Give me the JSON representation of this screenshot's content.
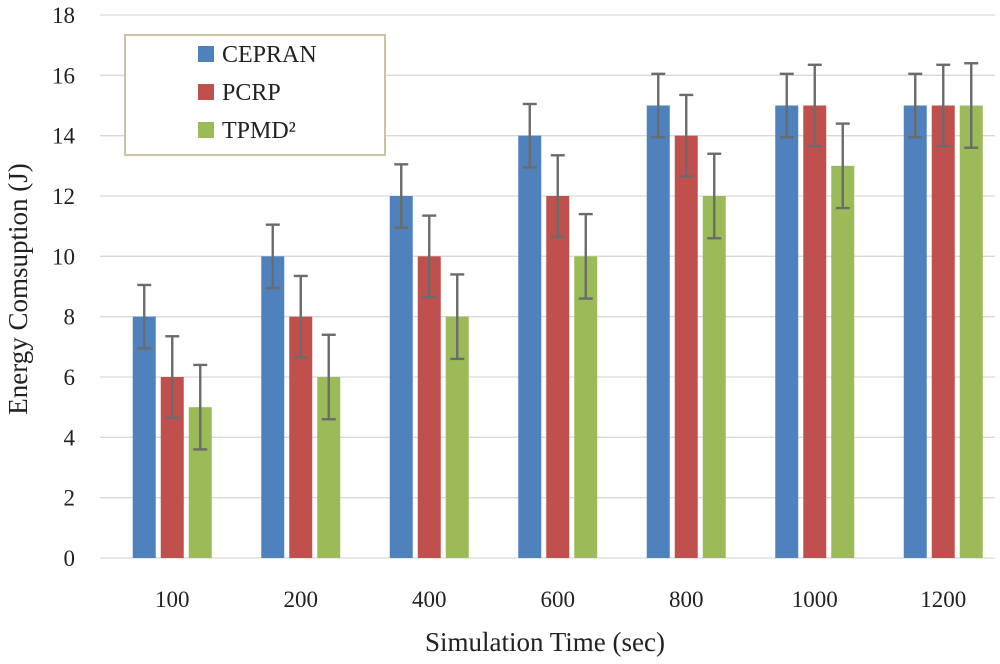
{
  "chart_data": {
    "type": "bar",
    "title": "",
    "xlabel": "Simulation Time (sec)",
    "ylabel": "Energy Comsuption (J)",
    "categories": [
      "100",
      "200",
      "400",
      "600",
      "800",
      "1000",
      "1200"
    ],
    "ylim": [
      0,
      18
    ],
    "yticks": [
      0,
      2,
      4,
      6,
      8,
      10,
      12,
      14,
      16,
      18
    ],
    "grid": true,
    "legend_position": "top-left",
    "series": [
      {
        "name": "CEPRAN",
        "color": "#4f81bd",
        "values": [
          8,
          10,
          12,
          14,
          15,
          15,
          15
        ],
        "errors": [
          1.05,
          1.05,
          1.05,
          1.05,
          1.05,
          1.05,
          1.05
        ]
      },
      {
        "name": "PCRP",
        "color": "#c0504d",
        "values": [
          6,
          8,
          10,
          12,
          14,
          15,
          15
        ],
        "errors": [
          1.35,
          1.35,
          1.35,
          1.35,
          1.35,
          1.35,
          1.35
        ]
      },
      {
        "name": "TPMD²",
        "color": "#9bbb59",
        "values": [
          5,
          6,
          8,
          10,
          12,
          13,
          15
        ],
        "errors": [
          1.4,
          1.4,
          1.4,
          1.4,
          1.4,
          1.4,
          1.4
        ]
      }
    ]
  }
}
